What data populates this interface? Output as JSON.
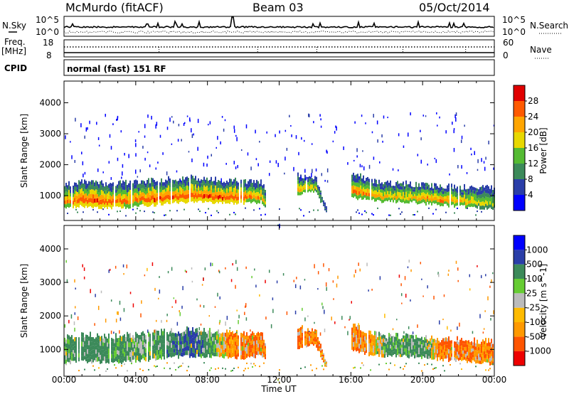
{
  "header": {
    "station": "McMurdo (fitACF)",
    "beam": "Beam 03",
    "date": "05/Oct/2014"
  },
  "params": {
    "nsky_label": "N.Sky",
    "nsky_top": "10^5",
    "nsky_bottom": "10^0",
    "nsearch_label": "N.Search",
    "nsearch_top": "10^5",
    "nsearch_bottom": "10^0",
    "freq_label": "Freq.",
    "freq_unit": "[MHz]",
    "freq_top": "18",
    "freq_bottom": "8",
    "nave_label": "Nave",
    "nave_top": "60",
    "nave_bottom": "0",
    "cpid_label": "CPID",
    "cpid_text": "normal (fast) 151 RF"
  },
  "colors": {
    "power": [
      "#0000ff",
      "#2a3ea8",
      "#3c8a5a",
      "#55bb33",
      "#e8d800",
      "#ffa500",
      "#ff5a00",
      "#e00000"
    ],
    "velocity": [
      "#ee0000",
      "#ff5500",
      "#ff9900",
      "#ffbb00",
      "#bbbbbb",
      "#66cc33",
      "#3c8a5a",
      "#2a3ea8",
      "#0000ff"
    ]
  },
  "chart_data": [
    {
      "type": "heatmap",
      "title": "",
      "xlabel": "",
      "ylabel": "Slant Range [km]",
      "colorbar_label": "Power [dB]",
      "colorbar_ticks": [
        "4",
        "8",
        "12",
        "16",
        "20",
        "24",
        "28"
      ],
      "ylim": [
        200,
        4700
      ],
      "yticks": [
        "1000",
        "2000",
        "3000",
        "4000"
      ],
      "xlim": [
        "00:00",
        "24:00"
      ],
      "xticks": [
        "00:00",
        "04:00",
        "08:00",
        "12:00",
        "16:00",
        "20:00",
        "00:00"
      ],
      "main_band": {
        "hours": [
          0,
          1,
          2,
          3,
          4,
          5,
          6,
          7,
          8,
          9,
          10,
          11,
          12,
          13,
          14,
          15,
          16,
          17,
          18,
          19,
          20,
          21,
          22,
          23,
          24
        ],
        "lower_km": [
          600,
          650,
          620,
          600,
          660,
          700,
          760,
          800,
          800,
          760,
          750,
          800,
          0,
          1050,
          1150,
          0,
          950,
          850,
          800,
          800,
          750,
          700,
          650,
          620,
          560
        ],
        "upper_km": [
          1350,
          1450,
          1400,
          1400,
          1450,
          1500,
          1550,
          1600,
          1550,
          1500,
          1480,
          1450,
          0,
          1650,
          1600,
          0,
          1750,
          1500,
          1400,
          1400,
          1350,
          1300,
          1300,
          1250,
          1250
        ],
        "peak_db": [
          24,
          28,
          28,
          26,
          24,
          28,
          28,
          26,
          28,
          28,
          26,
          22,
          0,
          22,
          18,
          0,
          24,
          24,
          20,
          20,
          22,
          24,
          20,
          18,
          16
        ]
      }
    },
    {
      "type": "heatmap",
      "title": "",
      "xlabel": "Time UT",
      "ylabel": "Slant Range [km]",
      "colorbar_label": "Velocity [m s^-1]",
      "colorbar_ticks": [
        "-1000",
        "-500",
        "-100",
        "-25",
        "25",
        "100",
        "500",
        "1000"
      ],
      "ylim": [
        200,
        4700
      ],
      "yticks": [
        "1000",
        "2000",
        "3000",
        "4000"
      ],
      "xlim": [
        "00:00",
        "24:00"
      ],
      "xticks": [
        "00:00",
        "04:00",
        "08:00",
        "12:00",
        "16:00",
        "20:00",
        "00:00"
      ],
      "main_band": {
        "hours": [
          0,
          1,
          2,
          3,
          4,
          5,
          6,
          7,
          8,
          9,
          10,
          11,
          12,
          13,
          14,
          15,
          16,
          17,
          18,
          19,
          20,
          21,
          22,
          23,
          24
        ],
        "dominant_ms": [
          200,
          300,
          300,
          200,
          150,
          150,
          400,
          600,
          300,
          -200,
          -300,
          -300,
          0,
          -300,
          -300,
          0,
          -300,
          -200,
          200,
          150,
          200,
          -300,
          -400,
          -200,
          -300
        ]
      }
    }
  ]
}
